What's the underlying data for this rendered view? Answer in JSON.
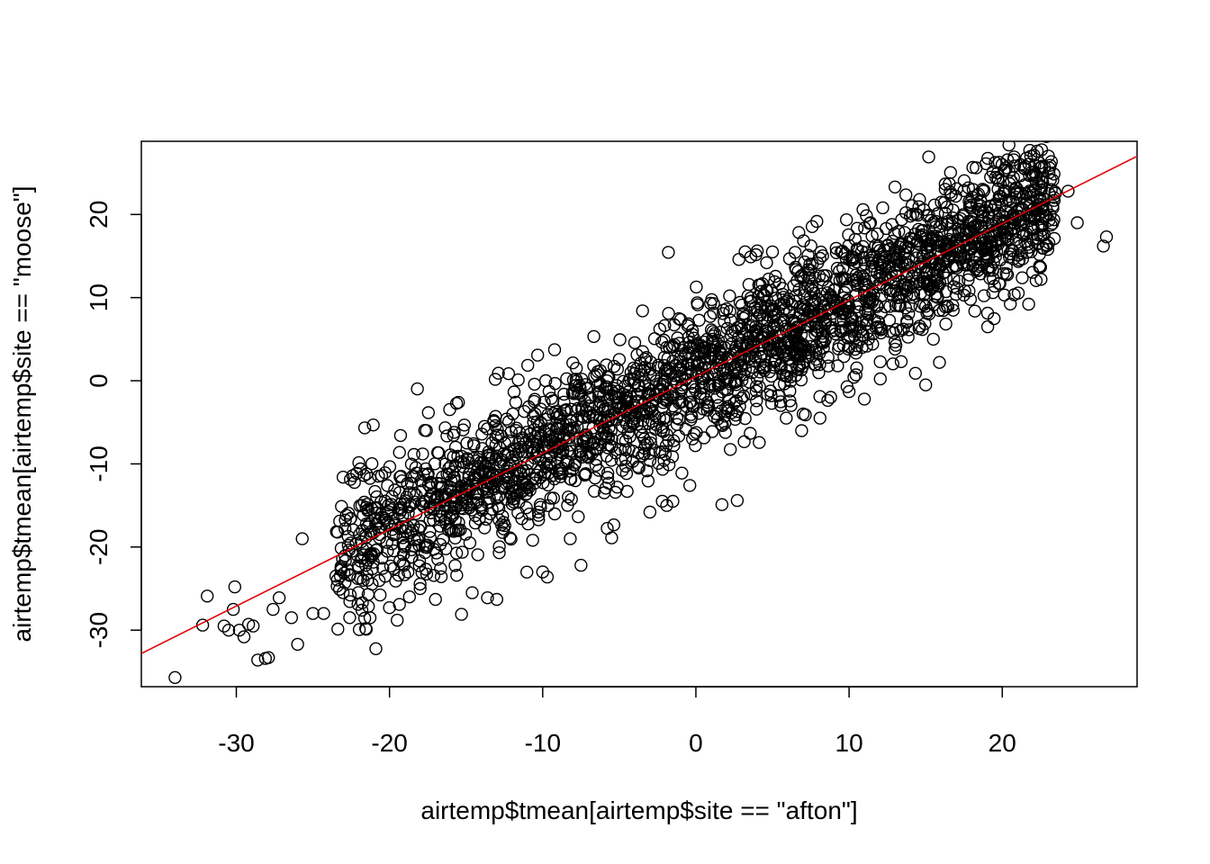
{
  "chart_data": {
    "type": "scatter",
    "title": "",
    "xlabel": "airtemp$tmean[airtemp$site == \"afton\"]",
    "ylabel": "airtemp$tmean[airtemp$site == \"moose\"]",
    "xlim": [
      -36.2,
      28.8
    ],
    "ylim": [
      -36.8,
      28.8
    ],
    "x_ticks": [
      -30,
      -20,
      -10,
      0,
      10,
      20
    ],
    "x_tick_labels": [
      "-30",
      "-20",
      "-10",
      "0",
      "10",
      "20"
    ],
    "y_ticks": [
      -30,
      -20,
      -10,
      0,
      10,
      20
    ],
    "y_tick_labels": [
      "-30",
      "-20",
      "-10",
      "0",
      "10",
      "20"
    ],
    "grid": false,
    "legend": "none",
    "marker": "open-circle",
    "point_color": "#000000",
    "fit_line": {
      "slope": 0.92,
      "intercept": 0.5,
      "color": "#e00000"
    },
    "series": [
      {
        "points": [
          [
            -34.0,
            -35.7
          ],
          [
            -32.2,
            -29.4
          ],
          [
            -31.9,
            -25.9
          ],
          [
            -30.8,
            -29.5
          ],
          [
            -30.5,
            -30.0
          ],
          [
            -30.2,
            -27.5
          ],
          [
            -30.1,
            -24.8
          ],
          [
            -29.8,
            -30.0
          ],
          [
            -29.5,
            -30.8
          ],
          [
            -29.2,
            -29.3
          ],
          [
            -28.9,
            -29.5
          ],
          [
            -28.6,
            -33.6
          ],
          [
            -28.1,
            -33.4
          ],
          [
            -27.9,
            -33.3
          ],
          [
            -27.6,
            -27.5
          ],
          [
            -27.2,
            -26.1
          ],
          [
            -26.4,
            -28.5
          ],
          [
            -26.0,
            -31.7
          ],
          [
            -25.7,
            -19.0
          ],
          [
            -25.0,
            -28.0
          ],
          [
            -24.3,
            -28.0
          ],
          [
            -23.5,
            -23.5
          ],
          [
            -22.6,
            -28.5
          ],
          [
            -21.8,
            -27.6
          ],
          [
            -21.9,
            -10.6
          ],
          [
            -21.4,
            -15.5
          ],
          [
            -20.0,
            -27.3
          ],
          [
            -19.5,
            -28.8
          ],
          [
            -18.7,
            -26.0
          ],
          [
            -18.8,
            -23.0
          ],
          [
            -18.0,
            -25.0
          ],
          [
            -17.0,
            -26.3
          ],
          [
            -15.3,
            -28.1
          ],
          [
            -15.5,
            -2.6
          ],
          [
            -14.6,
            -25.5
          ],
          [
            -13.6,
            -26.1
          ],
          [
            -13.0,
            -26.3
          ],
          [
            -11.6,
            0.1
          ],
          [
            -11.2,
            -3.7
          ],
          [
            -10.0,
            -23.0
          ],
          [
            -9.7,
            -23.6
          ],
          [
            -9.8,
            0.0
          ],
          [
            -8.2,
            -19.0
          ],
          [
            -7.5,
            -22.2
          ],
          [
            -7.8,
            1.5
          ],
          [
            -6.4,
            1.1
          ],
          [
            -5.5,
            -18.9
          ],
          [
            -5.0,
            -4.0
          ],
          [
            -3.6,
            2.1
          ],
          [
            -3.0,
            -15.8
          ],
          [
            -1.9,
            -15.0
          ],
          [
            -1.5,
            -14.5
          ],
          [
            -0.8,
            4.0
          ],
          [
            -0.4,
            -12.6
          ],
          [
            0.5,
            3.5
          ],
          [
            1.7,
            -14.9
          ],
          [
            2.7,
            -14.4
          ],
          [
            2.2,
            10.2
          ],
          [
            3.4,
            10.2
          ],
          [
            4.0,
            8.5
          ],
          [
            5.0,
            15.5
          ],
          [
            5.9,
            -4.5
          ],
          [
            6.9,
            -6.0
          ],
          [
            7.0,
            -4.0
          ],
          [
            8.1,
            -4.5
          ],
          [
            8.8,
            -2.0
          ],
          [
            10.0,
            -1.3
          ],
          [
            11.0,
            -2.2
          ],
          [
            11.4,
            19.0
          ],
          [
            12.2,
            20.8
          ],
          [
            12.8,
            18.8
          ],
          [
            13.0,
            3.8
          ],
          [
            13.4,
            2.3
          ],
          [
            15.0,
            -0.5
          ],
          [
            15.5,
            5.0
          ],
          [
            15.9,
            2.2
          ],
          [
            16.4,
            9.0
          ],
          [
            17.5,
            10.3
          ],
          [
            18.1,
            23.0
          ],
          [
            19.7,
            25.0
          ],
          [
            20.6,
            24.0
          ],
          [
            21.4,
            25.6
          ],
          [
            22.6,
            24.0
          ],
          [
            23.2,
            23.0
          ],
          [
            24.3,
            22.8
          ],
          [
            24.9,
            19.0
          ],
          [
            26.6,
            16.2
          ],
          [
            26.8,
            17.3
          ]
        ],
        "cloud_extent": {
          "x": [
            -23.5,
            23.5
          ],
          "y_offset_spread": 4.2
        }
      }
    ]
  }
}
